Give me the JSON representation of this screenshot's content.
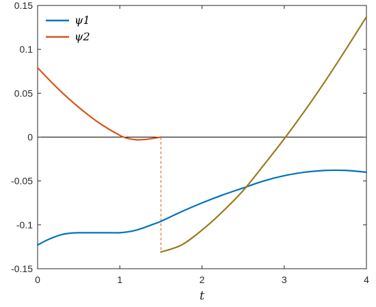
{
  "chart_data": {
    "type": "line",
    "xlabel": "t",
    "ylabel": "",
    "xlim": [
      0,
      4
    ],
    "ylim": [
      -0.15,
      0.15
    ],
    "xticks": [
      "0",
      "1",
      "2",
      "3",
      "4"
    ],
    "yticks": [
      "-0.15",
      "-0.1",
      "-0.05",
      "0",
      "0.05",
      "0.1",
      "0.15"
    ],
    "grid": false,
    "legend_position": "top-left",
    "zero_line": true,
    "switch_line": {
      "x": 1.5,
      "y_from": 0.0,
      "y_to": -0.131,
      "style": "dashed"
    },
    "series": [
      {
        "name": "ψ1",
        "color": "#0072BD",
        "x": [
          0,
          0.1,
          0.2,
          0.3,
          0.4,
          0.5,
          0.6,
          0.7,
          0.8,
          0.9,
          1.0,
          1.1,
          1.2,
          1.3,
          1.4,
          1.5,
          1.75,
          2.0,
          2.25,
          2.5,
          2.75,
          3.0,
          3.25,
          3.5,
          3.75,
          4.0
        ],
        "y": [
          -0.123,
          -0.118,
          -0.114,
          -0.111,
          -0.1095,
          -0.109,
          -0.109,
          -0.109,
          -0.109,
          -0.109,
          -0.109,
          -0.108,
          -0.106,
          -0.103,
          -0.0995,
          -0.096,
          -0.085,
          -0.075,
          -0.066,
          -0.058,
          -0.05,
          -0.044,
          -0.04,
          -0.038,
          -0.038,
          -0.04
        ]
      },
      {
        "name": "ψ2",
        "color": "#D95319",
        "x": [
          0,
          0.25,
          0.5,
          0.75,
          1.0,
          1.1,
          1.2,
          1.3,
          1.4,
          1.5,
          1.75,
          2.0,
          2.25,
          2.5,
          2.75,
          3.0,
          3.25,
          3.5,
          3.75,
          4.0
        ],
        "y": [
          0.079,
          0.055,
          0.034,
          0.016,
          0.002,
          -0.0015,
          -0.003,
          -0.0028,
          -0.0015,
          0.0,
          -0.123,
          -0.106,
          -0.085,
          -0.061,
          -0.032,
          -0.002,
          0.03,
          0.064,
          0.1,
          0.137
        ]
      }
    ]
  }
}
